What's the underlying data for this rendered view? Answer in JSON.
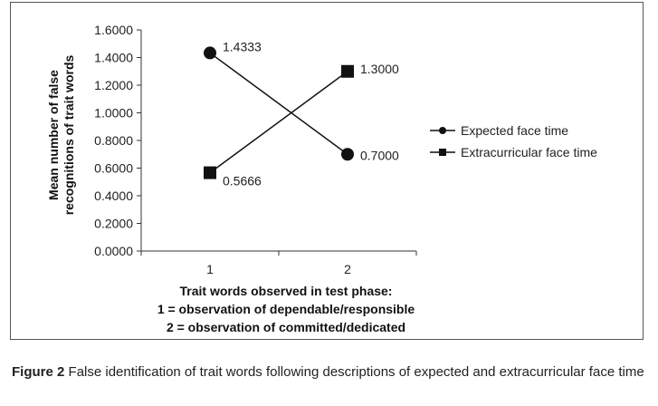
{
  "chart_data": {
    "type": "line",
    "categories": [
      "1",
      "2"
    ],
    "series": [
      {
        "name": "Expected face time",
        "values": [
          1.4333,
          0.7
        ],
        "labels": [
          "1.4333",
          "0.7000"
        ],
        "marker": "circle"
      },
      {
        "name": "Extracurricular face time",
        "values": [
          0.5666,
          1.3
        ],
        "labels": [
          "0.5666",
          "1.3000"
        ],
        "marker": "square"
      }
    ],
    "ylabel_lines": [
      "Mean number of false",
      "recognitions of trait words"
    ],
    "xlabel_lines": [
      "Trait words observed in test phase:",
      "1 = observation of dependable/responsible",
      "2 = observation of committed/dedicated"
    ],
    "ylim": [
      0,
      1.6
    ],
    "yticks": [
      "0.0000",
      "0.2000",
      "0.4000",
      "0.6000",
      "0.8000",
      "1.0000",
      "1.2000",
      "1.4000",
      "1.6000"
    ],
    "grid": false,
    "legend": "right"
  },
  "caption": {
    "label": "Figure 2",
    "text": "False identification of trait words following descriptions of expected and extracurricular face time"
  }
}
